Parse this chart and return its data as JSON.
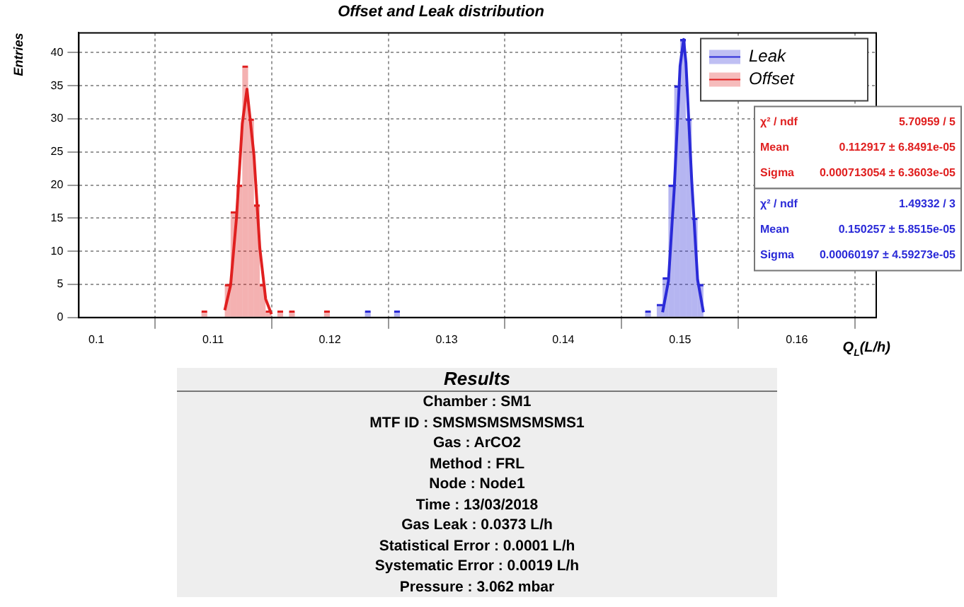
{
  "chart_data": [
    {
      "type": "histogram",
      "title": "Offset and Leak distribution",
      "xlabel": "Q$_{L}$(L/h)",
      "ylabel": "Entries",
      "bins": [
        0.1085,
        0.109,
        0.1095,
        0.11,
        0.1105,
        0.111,
        0.1115,
        0.112,
        0.1125,
        0.113,
        0.1135,
        0.114,
        0.1145,
        0.115,
        0.1155,
        0.116,
        0.1165,
        0.117,
        0.1175,
        0.118,
        0.1185,
        0.119,
        0.1195,
        0.12,
        0.1205,
        0.121,
        0.1215,
        0.122,
        0.1225,
        0.123,
        0.1235,
        0.124,
        0.1245,
        0.125,
        0.1255,
        0.126,
        0.1265,
        0.127,
        0.1275,
        0.128,
        0.1285,
        0.129,
        0.1295,
        0.13,
        0.1305,
        0.131,
        0.1315,
        0.132,
        0.1325,
        0.133,
        0.1335,
        0.134,
        0.1345,
        0.135,
        0.1355,
        0.136,
        0.1365,
        0.137,
        0.1375,
        0.138,
        0.1385,
        0.139,
        0.1395,
        0.14,
        0.1405,
        0.141,
        0.1415,
        0.142,
        0.1425,
        0.143,
        0.1435,
        0.144,
        0.1445,
        0.145,
        0.1455,
        0.146,
        0.1465,
        0.147,
        0.1475,
        0.148,
        0.1485,
        0.149,
        0.1495,
        0.15,
        0.1505,
        0.151,
        0.1515,
        0.152,
        0.1525
      ],
      "series": [
        {
          "name": "Leak",
          "color": "#2a2ad8",
          "values": [
            0,
            0,
            0,
            0,
            0,
            0,
            0,
            0,
            0,
            0,
            0,
            0,
            0,
            0,
            0,
            0,
            0,
            0,
            0,
            0,
            0,
            0,
            0,
            0,
            0,
            0,
            0,
            0,
            0,
            1,
            0,
            0,
            0,
            0,
            1,
            0,
            0,
            0,
            0,
            0,
            0,
            0,
            0,
            0,
            0,
            0,
            0,
            0,
            0,
            0,
            0,
            0,
            0,
            0,
            0,
            0,
            0,
            0,
            0,
            0,
            0,
            0,
            0,
            0,
            0,
            0,
            0,
            0,
            0,
            0,
            0,
            0,
            0,
            0,
            0,
            0,
            0,
            1,
            0,
            2,
            6,
            20,
            35,
            42,
            30,
            15,
            5,
            0
          ]
        },
        {
          "name": "Offset",
          "color": "#e02020",
          "values": [
            0,
            1,
            0,
            0,
            0,
            5,
            16,
            20,
            38,
            30,
            17,
            5,
            1,
            0,
            1,
            0,
            1,
            0,
            0,
            0,
            0,
            0,
            1,
            0,
            0,
            0,
            0,
            0,
            0,
            0,
            0,
            0,
            0,
            0,
            0,
            0,
            0,
            0,
            0,
            0,
            0,
            0,
            0,
            0,
            0,
            0,
            0,
            0,
            0,
            0,
            0,
            0,
            0,
            0,
            0,
            0,
            0,
            0,
            0,
            0,
            0,
            0,
            0,
            0,
            0,
            0,
            0,
            0,
            0,
            0,
            0,
            0,
            0,
            0,
            0,
            0,
            0,
            0,
            0,
            0,
            0,
            0,
            0,
            0,
            0,
            0,
            0,
            0
          ]
        },
        {
          "type": "line",
          "color": "#e02020",
          "x": [
            0.111,
            0.1115,
            0.112,
            0.1125,
            0.1129,
            0.1135,
            0.114,
            0.1145,
            0.115
          ],
          "values": [
            1.1,
            4.9,
            15,
            29.3,
            34.5,
            24.5,
            10.5,
            2.8,
            0.5
          ]
        },
        {
          "type": "line",
          "color": "#2a2ad8",
          "x": [
            0.1485,
            0.149,
            0.1495,
            0.15,
            0.1503,
            0.1505,
            0.151,
            0.1515,
            0.152
          ],
          "values": [
            0.8,
            5.5,
            19.5,
            38,
            42,
            38.5,
            20.5,
            5.7,
            0.8
          ]
        }
      ],
      "xlim": [
        0.0985,
        0.1668
      ],
      "ylim": [
        0,
        43
      ],
      "xticks": [
        0.1,
        0.11,
        0.12,
        0.13,
        0.14,
        0.15,
        0.16
      ],
      "yticks": [
        0,
        5,
        10,
        15,
        20,
        25,
        30,
        35,
        40
      ],
      "grid": true,
      "legend": "top right",
      "marker": "none",
      "annotations": [
        "χ² / ndf",
        "5.70959 / 5",
        "Mean",
        "0.112917 ± 6.8491e-05",
        "Sigma",
        "0.000713054 ± 6.3603e-05",
        "χ² / ndf",
        "1.49332 / 3",
        "Mean",
        "0.150257 ± 5.8515e-05",
        "Sigma",
        "0.00060197 ± 4.59273e-05"
      ]
    },
    {
      "type": "other",
      "title": "Results",
      "annotations": [
        "Chamber : SM1",
        "MTF ID : SMSMSMSMSMSMS1",
        "Gas : ArCO2",
        "Method : FRL",
        "Node : Node1",
        "Time : 13/03/2018",
        "Gas Leak : 0.0373 L/h",
        "Statistical Error : 0.0001 L/h",
        "Systematic Error : 0.0019 L/h",
        "Pressure : 3.062 mbar"
      ]
    }
  ]
}
